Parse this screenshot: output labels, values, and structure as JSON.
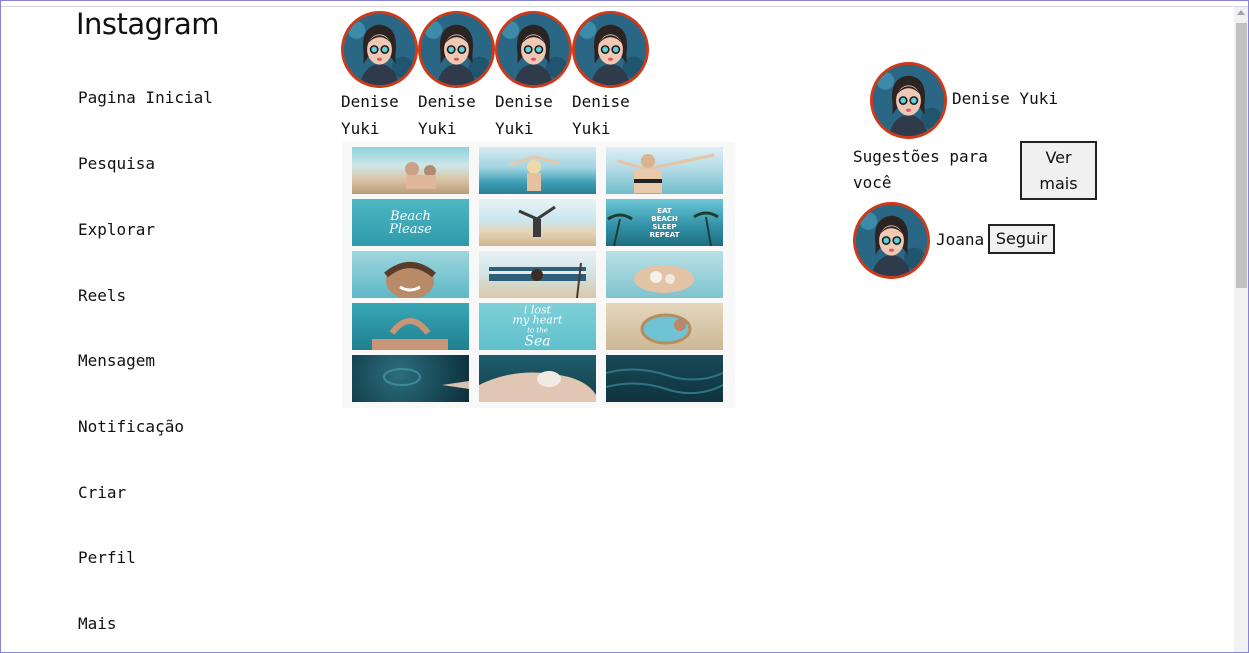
{
  "app": {
    "logo_text": "Instagram"
  },
  "sidebar": {
    "items": [
      {
        "label": "Pagina Inicial"
      },
      {
        "label": "Pesquisa"
      },
      {
        "label": "Explorar"
      },
      {
        "label": "Reels"
      },
      {
        "label": "Mensagem"
      },
      {
        "label": "Notificação"
      },
      {
        "label": "Criar"
      },
      {
        "label": "Perfil"
      },
      {
        "label": "Mais"
      }
    ]
  },
  "stories": [
    {
      "name_line1": "Denise",
      "name_line2": "Yuki"
    },
    {
      "name_line1": "Denise",
      "name_line2": "Yuki"
    },
    {
      "name_line1": "Denise",
      "name_line2": "Yuki"
    },
    {
      "name_line1": "Denise",
      "name_line2": "Yuki"
    }
  ],
  "post": {
    "tile_texts": {
      "beach_please": [
        "Beach",
        "Please"
      ],
      "eat_sleep": [
        "EAT",
        "BEACH",
        "SLEEP",
        "REPEAT"
      ],
      "lost_heart": [
        "i lost",
        "my heart",
        "to the",
        "Sea"
      ]
    }
  },
  "profile": {
    "username": "Denise Yuki"
  },
  "suggestions": {
    "heading_line1": "Sugestões para",
    "heading_line2": "você",
    "see_more_line1": "Ver",
    "see_more_line2": "mais",
    "users": [
      {
        "name": "Joana",
        "follow_label": "Seguir"
      }
    ]
  },
  "colors": {
    "avatar_ring": "#cc3a1a",
    "sea": "#3fa9b8",
    "sand": "#e7d6b8"
  }
}
